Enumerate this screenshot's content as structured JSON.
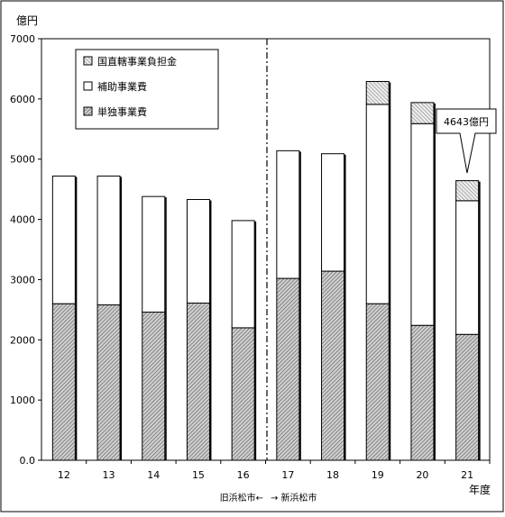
{
  "chart_data": {
    "type": "bar",
    "stacked": true,
    "categories": [
      "12",
      "13",
      "14",
      "15",
      "16",
      "17",
      "18",
      "19",
      "20",
      "21"
    ],
    "series": [
      {
        "name": "単独事業費",
        "pattern": "hatch-dense",
        "values": [
          2600,
          2580,
          2460,
          2610,
          2200,
          3020,
          3140,
          2600,
          2240,
          2090
        ]
      },
      {
        "name": "補助事業費",
        "pattern": "white",
        "values": [
          2120,
          2140,
          1920,
          1720,
          1780,
          2120,
          1950,
          3310,
          3350,
          2220
        ]
      },
      {
        "name": "国直轄事業負担金",
        "pattern": "hatch-light",
        "values": [
          0,
          0,
          0,
          0,
          0,
          0,
          0,
          380,
          350,
          333
        ]
      }
    ],
    "ylabel": "億円",
    "xlabel": "年度",
    "ylim": [
      0,
      7000
    ],
    "yticks": [
      "0.0",
      "1000",
      "2000",
      "3000",
      "4000",
      "5000",
      "6000",
      "7000"
    ],
    "grid": false,
    "legend_position": "top-left",
    "divider_after_category": "16",
    "divider_left_label": "旧浜松市←",
    "divider_right_label": "→ 新浜松市",
    "callout": {
      "category": "21",
      "text": "4643億円",
      "value": 4643
    }
  }
}
